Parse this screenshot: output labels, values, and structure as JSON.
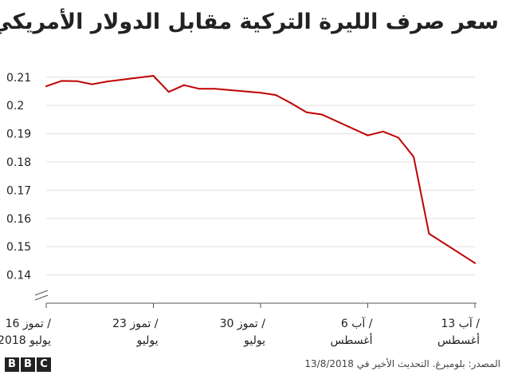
{
  "title": "سعر صرف الليرة التركية مقابل الدولار الأمريكي",
  "source": "المصدر: بلومبرغ. التحديث الأخير في 13/8/2018",
  "logo": [
    "B",
    "B",
    "C"
  ],
  "colors": {
    "line": "#c00000",
    "grid": "#e0e0e0",
    "axis": "#555555",
    "text": "#222222"
  },
  "chart_data": {
    "type": "line",
    "title": "سعر صرف الليرة التركية مقابل الدولار الأمريكي",
    "xlabel": "",
    "ylabel": "",
    "grid": true,
    "legend": "none",
    "x": [
      "2018-07-16",
      "2018-07-17",
      "2018-07-18",
      "2018-07-19",
      "2018-07-20",
      "2018-07-23",
      "2018-07-24",
      "2018-07-25",
      "2018-07-26",
      "2018-07-27",
      "2018-07-30",
      "2018-07-31",
      "2018-08-01",
      "2018-08-02",
      "2018-08-03",
      "2018-08-06",
      "2018-08-07",
      "2018-08-08",
      "2018-08-09",
      "2018-08-10",
      "2018-08-13"
    ],
    "series": [
      {
        "values": [
          0.2068,
          0.2087,
          0.2086,
          0.2075,
          0.2085,
          0.2105,
          0.2048,
          0.2072,
          0.2059,
          0.2059,
          0.2045,
          0.2037,
          0.2008,
          0.1976,
          0.1968,
          0.1894,
          0.1908,
          0.1886,
          0.1818,
          0.1546,
          0.1442
        ]
      }
    ],
    "ylim": [
      0.13,
      0.217
    ],
    "yticks": [
      0.14,
      0.15,
      0.16,
      0.17,
      0.18,
      0.19,
      0.2,
      0.21
    ],
    "ytick_labels": [
      "0.14",
      "0.15",
      "0.16",
      "0.17",
      "0.18",
      "0.19",
      "0.2",
      "0.21"
    ],
    "xticks": [
      {
        "date": "2018-07-16",
        "line1": "16 تموز /",
        "line2": "يوليو 2018"
      },
      {
        "date": "2018-07-23",
        "line1": "23 تموز /",
        "line2": "يوليو"
      },
      {
        "date": "2018-07-30",
        "line1": "30 تموز /",
        "line2": "يوليو"
      },
      {
        "date": "2018-08-06",
        "line1": "6 آب /",
        "line2": "أغسطس"
      },
      {
        "date": "2018-08-13",
        "line1": "13 آب /",
        "line2": "أغسطس"
      }
    ]
  }
}
